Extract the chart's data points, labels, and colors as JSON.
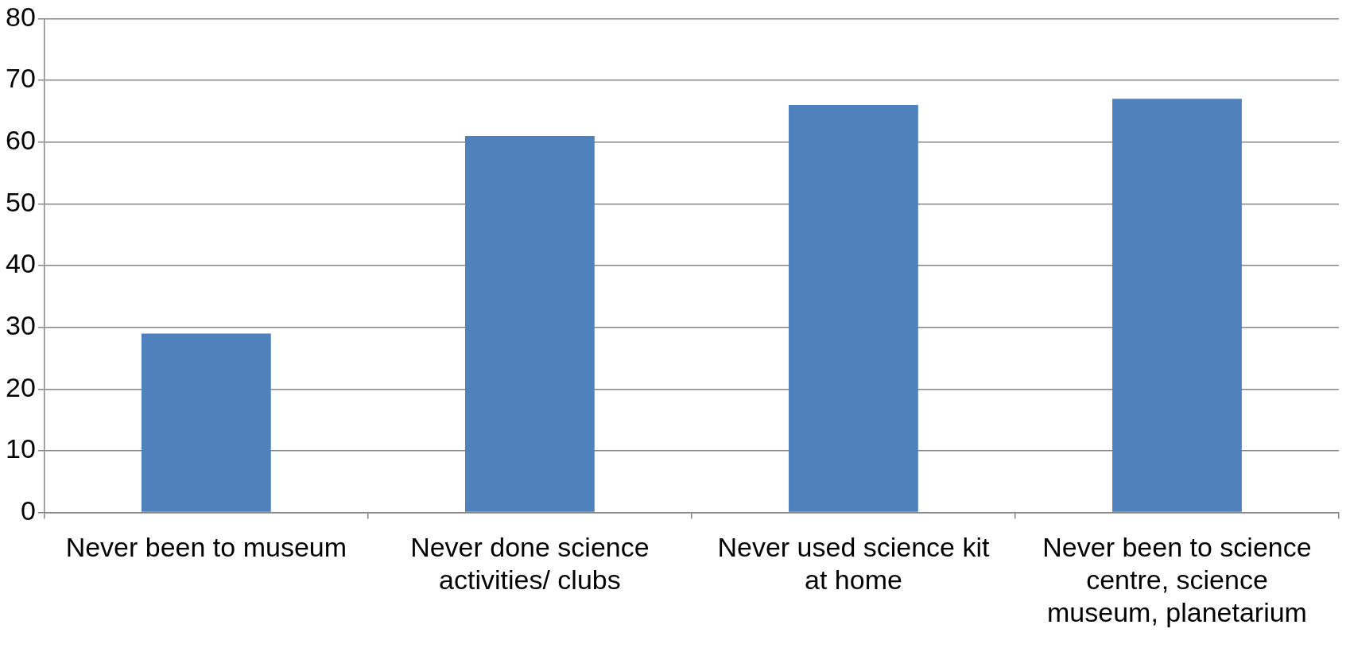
{
  "chart_data": {
    "type": "bar",
    "categories": [
      "Never been to museum",
      "Never done science activities/ clubs",
      "Never used science kit at home",
      "Never been to science centre, science museum, planetarium"
    ],
    "values": [
      29,
      61,
      66,
      67
    ],
    "color": "#4f81bd",
    "ylim": [
      0,
      80
    ],
    "yticks": [
      0,
      10,
      20,
      30,
      40,
      50,
      60,
      70,
      80
    ],
    "grid": "y",
    "legend": false
  }
}
